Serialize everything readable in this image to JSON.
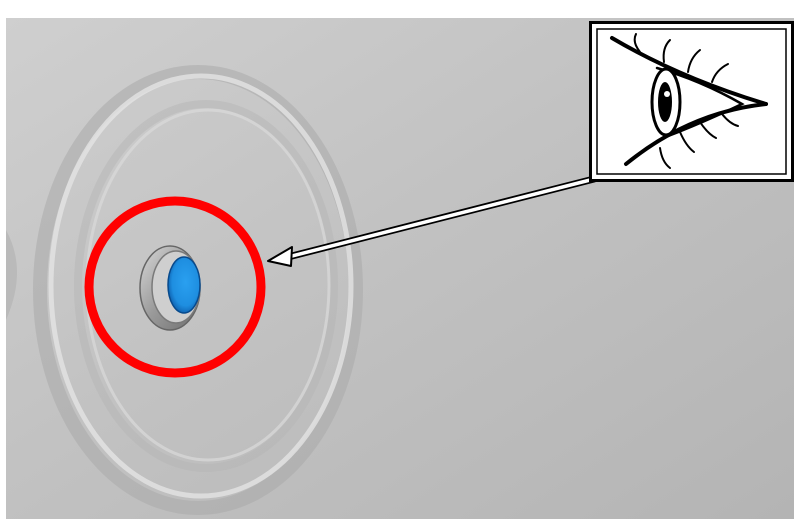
{
  "illustration": {
    "subject": "panel-with-recessed-sensor",
    "callout_icon": "eye-icon"
  },
  "colors": {
    "panel_light": "#c9c9c9",
    "panel_mid": "#b6b6b6",
    "panel_shadow": "#9c9c9c",
    "highlight_ring": "#ff0000",
    "sensor_lens": "#1e8ee0",
    "sensor_lens_dark": "#0b5aa8",
    "sensor_housing": "#a8a8a8",
    "callout_line": "#ffffff",
    "callout_outline": "#000000",
    "inset_background": "#ffffff"
  }
}
